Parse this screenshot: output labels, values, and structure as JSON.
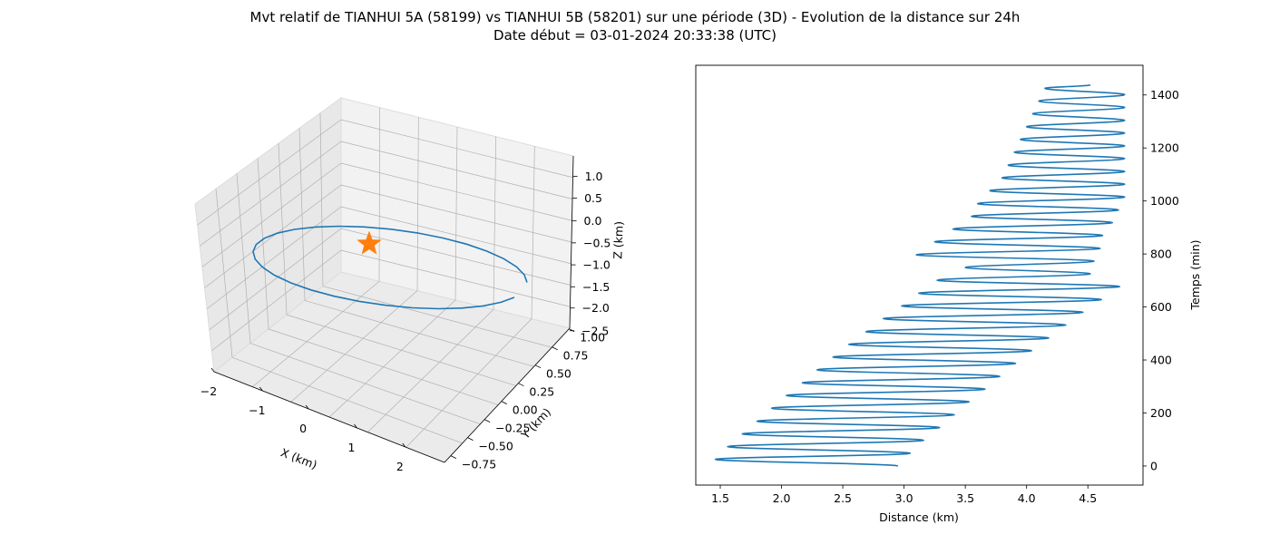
{
  "title_line1": "Mvt relatif de TIANHUI 5A (58199) vs TIANHUI 5B (58201) sur une période (3D) - Evolution de la distance sur 24h",
  "title_line2": "Date début = 03-01-2024 20:33:38 (UTC)",
  "colors": {
    "line": "#1f77b4",
    "marker": "#ff7f0e",
    "pane": "#f2f2f2",
    "grid": "#b0b0b0"
  },
  "chart_data": [
    {
      "type": "line3d",
      "xlabel": "X (km)",
      "ylabel": "Y (km)",
      "zlabel": "Z (km)",
      "x_ticks": [
        "−2",
        "−1",
        "0",
        "1",
        "2"
      ],
      "y_ticks": [
        "−0.75",
        "−0.50",
        "−0.25",
        "0.00",
        "0.25",
        "0.50",
        "0.75",
        "1.00"
      ],
      "z_ticks": [
        "1.0",
        "0.5",
        "0.0",
        "−0.5",
        "−1.0",
        "−1.5",
        "−2.0",
        "−2.5"
      ],
      "marker": {
        "shape": "star",
        "description": "reference satellite at origin"
      },
      "grid": true
    },
    {
      "type": "line",
      "xlabel": "Distance (km)",
      "ylabel": "Temps (min)",
      "xlim": [
        1.3,
        4.95
      ],
      "ylim": [
        -72,
        1512
      ],
      "x_ticks": [
        "1.5",
        "2.0",
        "2.5",
        "3.0",
        "3.5",
        "4.0",
        "4.5"
      ],
      "y_ticks": [
        "0",
        "200",
        "400",
        "600",
        "800",
        "1000",
        "1200",
        "1400"
      ],
      "x_tick_values": [
        1.5,
        2.0,
        2.5,
        3.0,
        3.5,
        4.0,
        4.5
      ],
      "y_tick_values": [
        0,
        200,
        400,
        600,
        800,
        1000,
        1200,
        1400
      ],
      "y_axis_side": "right",
      "series": [
        {
          "t": [
            0,
            25,
            48,
            73,
            97,
            121,
            145,
            169,
            193,
            218,
            242,
            266,
            290,
            314,
            338,
            363,
            387,
            411,
            435,
            459,
            483,
            507,
            532,
            556,
            580,
            604,
            628,
            652,
            677,
            701,
            725,
            749,
            773,
            797,
            821,
            846,
            870,
            894,
            918,
            942,
            966,
            990,
            1015,
            1039,
            1063,
            1087,
            1111,
            1135,
            1160,
            1184,
            1208,
            1232,
            1256,
            1280,
            1304,
            1329,
            1353,
            1377,
            1401,
            1425,
            1438
          ],
          "d": [
            2.95,
            1.46,
            3.05,
            1.56,
            3.16,
            1.68,
            3.29,
            1.8,
            3.41,
            1.92,
            3.53,
            2.04,
            3.66,
            2.17,
            3.78,
            2.29,
            3.91,
            2.42,
            4.04,
            2.55,
            4.18,
            2.69,
            4.32,
            2.83,
            4.46,
            2.98,
            4.61,
            3.12,
            4.76,
            3.27,
            4.52,
            3.5,
            4.55,
            3.1,
            4.6,
            3.25,
            4.62,
            3.4,
            4.7,
            3.55,
            4.75,
            3.6,
            4.8,
            3.7,
            4.8,
            3.8,
            4.8,
            3.85,
            4.8,
            3.9,
            4.8,
            3.95,
            4.8,
            4.0,
            4.8,
            4.05,
            4.8,
            4.1,
            4.8,
            4.15,
            4.52
          ]
        }
      ]
    }
  ]
}
